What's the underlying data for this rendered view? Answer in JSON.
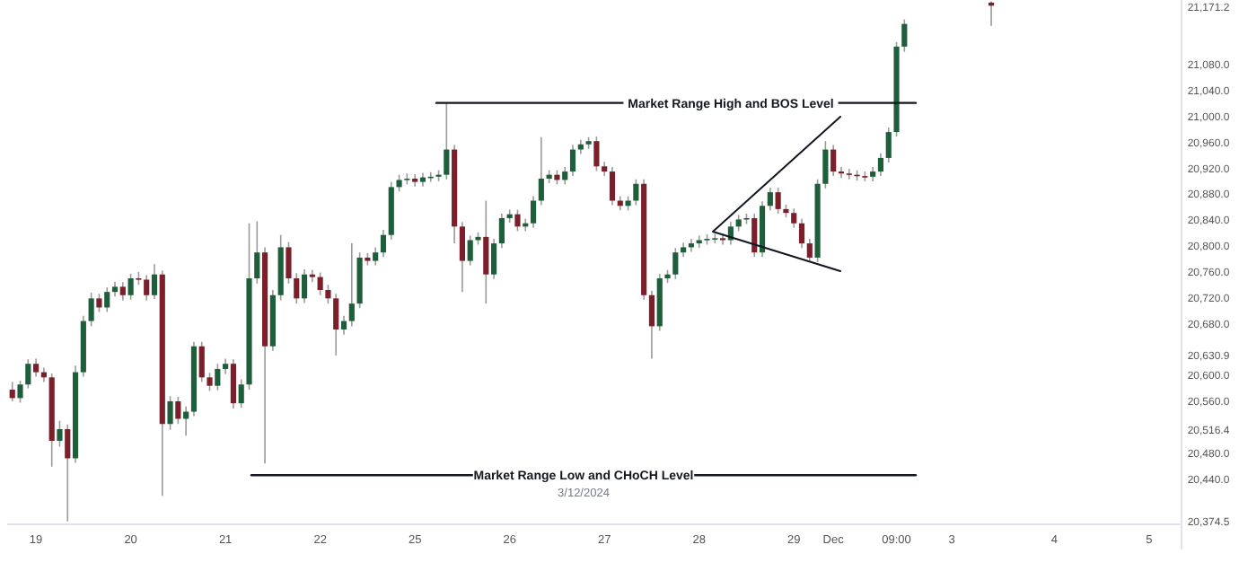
{
  "chart_data": {
    "type": "candlestick",
    "categories": [
      null,
      null,
      null,
      "19",
      null,
      null,
      null,
      null,
      null,
      null,
      null,
      null,
      null,
      null,
      null,
      "20",
      null,
      null,
      null,
      null,
      null,
      null,
      null,
      null,
      null,
      null,
      null,
      "21",
      null,
      null,
      null,
      null,
      null,
      null,
      null,
      null,
      null,
      null,
      null,
      "22",
      null,
      null,
      null,
      null,
      null,
      null,
      null,
      null,
      null,
      null,
      null,
      "25",
      null,
      null,
      null,
      null,
      null,
      null,
      null,
      null,
      null,
      null,
      null,
      "26",
      null,
      null,
      null,
      null,
      null,
      null,
      null,
      null,
      null,
      null,
      null,
      "27",
      null,
      null,
      null,
      null,
      null,
      null,
      null,
      null,
      null,
      null,
      null,
      "28",
      null,
      null,
      null,
      null,
      null,
      null,
      null,
      null,
      null,
      null,
      null,
      "29",
      null,
      null,
      null,
      null,
      "Dec",
      null,
      null,
      null,
      null,
      null,
      null,
      null,
      "09:00",
      null,
      null,
      null,
      null,
      null,
      null,
      "3",
      null,
      null,
      null,
      null,
      null,
      null,
      null,
      null,
      null,
      null,
      null,
      null,
      "4",
      null,
      null,
      null,
      null,
      null,
      null,
      null,
      null,
      null,
      null,
      null,
      "5",
      null,
      null,
      null
    ],
    "ohlc": [
      [
        20578,
        20590,
        20560,
        20565
      ],
      [
        20565,
        20592,
        20558,
        20586
      ],
      [
        20586,
        20625,
        20580,
        20618
      ],
      [
        20618,
        20626,
        20598,
        20605
      ],
      [
        20605,
        20612,
        20590,
        20597
      ],
      [
        20597,
        20603,
        20459,
        20499
      ],
      [
        20499,
        20530,
        20490,
        20517
      ],
      [
        20517,
        20524,
        20374.5,
        20472
      ],
      [
        20472,
        20615,
        20465,
        20605
      ],
      [
        20605,
        20692,
        20598,
        20684
      ],
      [
        20684,
        20728,
        20676,
        20719
      ],
      [
        20719,
        20726,
        20698,
        20705
      ],
      [
        20705,
        20736,
        20698,
        20729
      ],
      [
        20729,
        20745,
        20722,
        20737
      ],
      [
        20737,
        20744,
        20716,
        20724
      ],
      [
        20724,
        20757,
        20717,
        20750
      ],
      [
        20750,
        20760,
        20740,
        20748
      ],
      [
        20748,
        20755,
        20716,
        20724
      ],
      [
        20724,
        20772,
        20718,
        20756
      ],
      [
        20756,
        20762,
        20414,
        20525
      ],
      [
        20525,
        20568,
        20516,
        20560
      ],
      [
        20560,
        20567,
        20525,
        20533
      ],
      [
        20533,
        20552,
        20507,
        20544
      ],
      [
        20544,
        20652,
        20537,
        20645
      ],
      [
        20645,
        20652,
        20590,
        20597
      ],
      [
        20597,
        20604,
        20576,
        20584
      ],
      [
        20584,
        20618,
        20577,
        20610
      ],
      [
        20610,
        20626,
        20602,
        20618
      ],
      [
        20618,
        20625,
        20549,
        20557
      ],
      [
        20557,
        20594,
        20550,
        20586
      ],
      [
        20586,
        20835,
        20578,
        20750
      ],
      [
        20750,
        20838,
        20742,
        20790
      ],
      [
        20790,
        20798,
        20464,
        20645
      ],
      [
        20645,
        20732,
        20638,
        20724
      ],
      [
        20724,
        20817,
        20716,
        20798
      ],
      [
        20798,
        20806,
        20742,
        20750
      ],
      [
        20750,
        20758,
        20711,
        20719
      ],
      [
        20719,
        20764,
        20712,
        20756
      ],
      [
        20756,
        20763,
        20744,
        20752
      ],
      [
        20752,
        20759,
        20724,
        20732
      ],
      [
        20732,
        20740,
        20711,
        20719
      ],
      [
        20719,
        20726,
        20631,
        20671
      ],
      [
        20671,
        20692,
        20663,
        20684
      ],
      [
        20684,
        20804,
        20676,
        20711
      ],
      [
        20711,
        20790,
        20704,
        20782
      ],
      [
        20782,
        20789,
        20770,
        20777
      ],
      [
        20777,
        20798,
        20770,
        20790
      ],
      [
        20790,
        20825,
        20783,
        20817
      ],
      [
        20817,
        20899,
        20810,
        20891
      ],
      [
        20891,
        20910,
        20884,
        20902
      ],
      [
        20902,
        20912,
        20895,
        20904
      ],
      [
        20904,
        20911,
        20892,
        20899
      ],
      [
        20899,
        20913,
        20892,
        20906
      ],
      [
        20906,
        20914,
        20899,
        20907
      ],
      [
        20907,
        20917,
        20900,
        20910
      ],
      [
        20910,
        21021,
        20903,
        20949
      ],
      [
        20949,
        20956,
        20804,
        20830
      ],
      [
        20830,
        20837,
        20729,
        20777
      ],
      [
        20777,
        20816,
        20770,
        20809
      ],
      [
        20809,
        20821,
        20802,
        20814
      ],
      [
        20814,
        20870,
        20711,
        20756
      ],
      [
        20756,
        20811,
        20749,
        20804
      ],
      [
        20804,
        20850,
        20797,
        20843
      ],
      [
        20843,
        20856,
        20836,
        20849
      ],
      [
        20849,
        20856,
        20823,
        20830
      ],
      [
        20830,
        20842,
        20823,
        20835
      ],
      [
        20835,
        20877,
        20828,
        20870
      ],
      [
        20870,
        20968,
        20863,
        20904
      ],
      [
        20904,
        20917,
        20897,
        20910
      ],
      [
        20910,
        20917,
        20895,
        20902
      ],
      [
        20902,
        20922,
        20895,
        20915
      ],
      [
        20915,
        20956,
        20908,
        20949
      ],
      [
        20949,
        20964,
        20942,
        20957
      ],
      [
        20957,
        20968,
        20950,
        20962
      ],
      [
        20962,
        20969,
        20916,
        20923
      ],
      [
        20923,
        20930,
        20908,
        20915
      ],
      [
        20915,
        20922,
        20863,
        20870
      ],
      [
        20870,
        20877,
        20855,
        20862
      ],
      [
        20862,
        20877,
        20855,
        20870
      ],
      [
        20870,
        20903,
        20863,
        20896
      ],
      [
        20896,
        20903,
        20717,
        20724
      ],
      [
        20724,
        20731,
        20626,
        20676
      ],
      [
        20676,
        20757,
        20669,
        20750
      ],
      [
        20750,
        20763,
        20743,
        20756
      ],
      [
        20756,
        20797,
        20749,
        20790
      ],
      [
        20790,
        20805,
        20783,
        20798
      ],
      [
        20798,
        20811,
        20791,
        20804
      ],
      [
        20804,
        20816,
        20797,
        20809
      ],
      [
        20809,
        20818,
        20802,
        20811
      ],
      [
        20811,
        20819,
        20804,
        20812
      ],
      [
        20812,
        20819,
        20802,
        20809
      ],
      [
        20809,
        20837,
        20802,
        20830
      ],
      [
        20830,
        20848,
        20823,
        20841
      ],
      [
        20841,
        20850,
        20834,
        20843
      ],
      [
        20843,
        20850,
        20783,
        20790
      ],
      [
        20790,
        20869,
        20783,
        20862
      ],
      [
        20862,
        20890,
        20855,
        20883
      ],
      [
        20883,
        20890,
        20850,
        20857
      ],
      [
        20857,
        20864,
        20844,
        20851
      ],
      [
        20851,
        20858,
        20828,
        20835
      ],
      [
        20835,
        20842,
        20797,
        20804
      ],
      [
        20804,
        20811,
        20777,
        20782
      ],
      [
        20782,
        20903,
        20775,
        20896
      ],
      [
        20896,
        20962,
        20889,
        20949
      ],
      [
        20949,
        20956,
        20908,
        20915
      ],
      [
        20915,
        20922,
        20905,
        20912
      ],
      [
        20912,
        20919,
        20903,
        20910
      ],
      [
        20910,
        20917,
        20901,
        20908
      ],
      [
        20908,
        20915,
        20900,
        20907
      ],
      [
        20907,
        20922,
        20900,
        20915
      ],
      [
        20915,
        20943,
        20908,
        20936
      ],
      [
        20936,
        20983,
        20929,
        20976
      ],
      [
        20976,
        21115,
        20969,
        21108
      ],
      [
        21108,
        21150,
        21100,
        21143
      ],
      null,
      null,
      null,
      null,
      null,
      null,
      null,
      null,
      null,
      null,
      [
        21176,
        21178,
        21140,
        21171.2
      ],
      null,
      null,
      null,
      null,
      null,
      null,
      null,
      null,
      null,
      null,
      null,
      null,
      null,
      null,
      null,
      null,
      null,
      null,
      null,
      null,
      null,
      null,
      null
    ],
    "colors": [
      "#7b1f2b",
      "#1f5e3a",
      "#1f5e3a",
      "#7b1f2b",
      "#7b1f2b",
      "#7b1f2b",
      "#1f5e3a",
      "#7b1f2b",
      "#1f5e3a",
      "#1f5e3a",
      "#1f5e3a",
      "#7b1f2b",
      "#1f5e3a",
      "#1f5e3a",
      "#7b1f2b",
      "#1f5e3a",
      "#7b1f2b",
      "#7b1f2b",
      "#1f5e3a",
      "#7b1f2b",
      "#1f5e3a",
      "#7b1f2b",
      "#1f5e3a",
      "#1f5e3a",
      "#7b1f2b",
      "#7b1f2b",
      "#1f5e3a",
      "#1f5e3a",
      "#7b1f2b",
      "#1f5e3a",
      "#1f5e3a",
      "#1f5e3a",
      "#7b1f2b",
      "#1f5e3a",
      "#1f5e3a",
      "#7b1f2b",
      "#7b1f2b",
      "#1f5e3a",
      "#7b1f2b",
      "#7b1f2b",
      "#7b1f2b",
      "#7b1f2b",
      "#1f5e3a",
      "#1f5e3a",
      "#1f5e3a",
      "#7b1f2b",
      "#1f5e3a",
      "#1f5e3a",
      "#1f5e3a",
      "#1f5e3a",
      "#1f5e3a",
      "#7b1f2b",
      "#1f5e3a",
      "#1f5e3a",
      "#1f5e3a",
      "#1f5e3a",
      "#7b1f2b",
      "#7b1f2b",
      "#1f5e3a",
      "#1f5e3a",
      "#7b1f2b",
      "#1f5e3a",
      "#1f5e3a",
      "#1f5e3a",
      "#7b1f2b",
      "#1f5e3a",
      "#1f5e3a",
      "#1f5e3a",
      "#1f5e3a",
      "#7b1f2b",
      "#1f5e3a",
      "#1f5e3a",
      "#1f5e3a",
      "#1f5e3a",
      "#7b1f2b",
      "#7b1f2b",
      "#7b1f2b",
      "#7b1f2b",
      "#1f5e3a",
      "#1f5e3a",
      "#7b1f2b",
      "#7b1f2b",
      "#1f5e3a",
      "#1f5e3a",
      "#1f5e3a",
      "#1f5e3a",
      "#1f5e3a",
      "#1f5e3a",
      "#1f5e3a",
      "#1f5e3a",
      "#7b1f2b",
      "#1f5e3a",
      "#1f5e3a",
      "#1f5e3a",
      "#7b1f2b",
      "#1f5e3a",
      "#1f5e3a",
      "#7b1f2b",
      "#7b1f2b",
      "#7b1f2b",
      "#7b1f2b",
      "#7b1f2b",
      "#1f5e3a",
      "#1f5e3a",
      "#7b1f2b",
      "#7b1f2b",
      "#7b1f2b",
      "#7b1f2b",
      "#7b1f2b",
      "#1f5e3a",
      "#1f5e3a",
      "#1f5e3a",
      "#1f5e3a",
      "#1f5e3a",
      null,
      null,
      null,
      null,
      null,
      null,
      null,
      null,
      null,
      null,
      "#7b1f2b",
      null,
      null,
      null,
      null,
      null,
      null,
      null,
      null,
      null,
      null,
      null,
      null,
      null,
      null,
      null,
      null,
      null,
      null,
      null,
      null,
      null,
      null,
      null
    ],
    "ylim": [
      20370,
      21180
    ],
    "yticks": [
      {
        "value": 21080,
        "label": "21,080.0"
      },
      {
        "value": 21040,
        "label": "21,040.0"
      },
      {
        "value": 21000,
        "label": "21,000.0"
      },
      {
        "value": 20960,
        "label": "20,960.0"
      },
      {
        "value": 20920,
        "label": "20,920.0"
      },
      {
        "value": 20880,
        "label": "20,880.0"
      },
      {
        "value": 20840,
        "label": "20,840.0"
      },
      {
        "value": 20800,
        "label": "20,800.0"
      },
      {
        "value": 20760,
        "label": "20,760.0"
      },
      {
        "value": 20720,
        "label": "20,720.0"
      },
      {
        "value": 20680,
        "label": "20,680.0"
      },
      {
        "value": 20600,
        "label": "20,600.0"
      },
      {
        "value": 20560,
        "label": "20,560.0"
      },
      {
        "value": 20480,
        "label": "20,480.0"
      },
      {
        "value": 20440,
        "label": "20,440.0"
      },
      {
        "value": 21171.2,
        "label": "21,171.2"
      },
      {
        "value": 20630.9,
        "label": "20,630.9"
      },
      {
        "value": 20516.4,
        "label": "20,516.4"
      },
      {
        "value": 20374.5,
        "label": "20,374.5"
      }
    ],
    "ref_lines": [
      {
        "axis": "y",
        "value": 21021,
        "label": "Market Range High and BOS Level",
        "color": "#131722",
        "line_style": "solid"
      },
      {
        "axis": "y",
        "value": 20446,
        "label": "Market Range Low and CHoCH Level",
        "color": "#131722",
        "line_style": "solid"
      }
    ],
    "annotations": [
      "3/12/2024"
    ],
    "grid": false
  }
}
